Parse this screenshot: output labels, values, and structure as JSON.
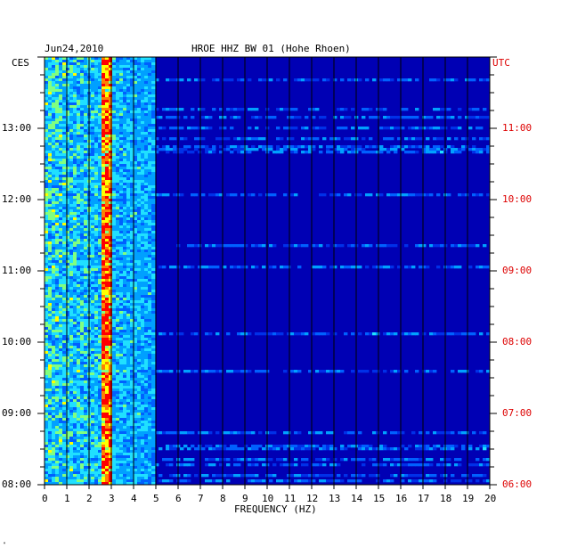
{
  "header": {
    "date": "Jun24,2010",
    "station": "HROE HHZ BW 01 (Hohe Rhoen)"
  },
  "chart_data": {
    "type": "heatmap",
    "title": "HROE HHZ BW 01 (Hohe Rhoen)",
    "date": "Jun24,2010",
    "xlabel": "FREQUENCY (HZ)",
    "xlim": [
      0,
      20
    ],
    "x_ticks": [
      "0",
      "1",
      "2",
      "3",
      "4",
      "5",
      "6",
      "7",
      "8",
      "9",
      "10",
      "11",
      "12",
      "13",
      "14",
      "15",
      "16",
      "17",
      "18",
      "19",
      "20"
    ],
    "left_axis": {
      "label": "CES",
      "ticks": [
        "08:00",
        "09:00",
        "10:00",
        "11:00",
        "12:00",
        "13:00"
      ],
      "tick_hours_from_bottom": [
        0,
        1,
        2,
        3,
        4,
        5
      ]
    },
    "right_axis": {
      "label": "UTC",
      "ticks": [
        "06:00",
        "07:00",
        "08:00",
        "09:00",
        "10:00",
        "11:00"
      ],
      "tick_hours_from_bottom": [
        0,
        1,
        2,
        3,
        4,
        5
      ],
      "color": "#dd0000"
    },
    "time_span_hours": 6,
    "features": {
      "dominant_band_hz": [
        2.5,
        3.0
      ],
      "high_energy_band_hz": [
        0,
        5
      ],
      "broadband_event_rows_utc": [
        "06:42",
        "07:00",
        "08:46",
        "09:20"
      ]
    },
    "colors": {
      "background": "#0000b4",
      "grid": "#000000",
      "low": "#0000a0",
      "high": "#ff0000"
    }
  },
  "footer": {
    "mark": "\""
  }
}
